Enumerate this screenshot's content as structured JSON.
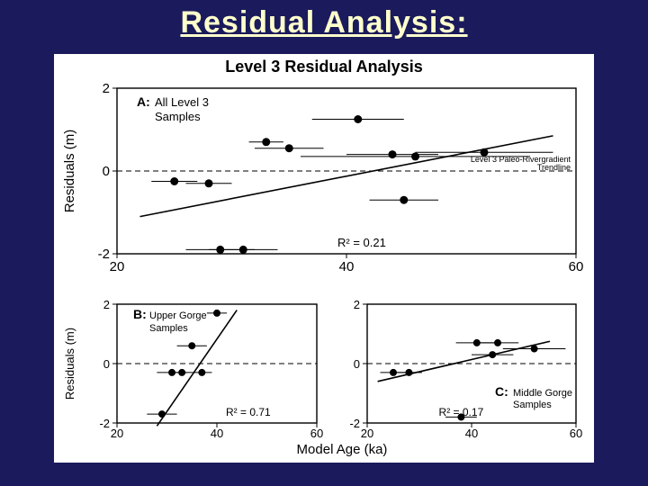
{
  "slide_title": "Residual Analysis:",
  "figure": {
    "background_color": "#ffffff",
    "title": "Level 3 Residual Analysis",
    "title_fontsize": 18,
    "xlabel": "Model Age (ka)",
    "ylabel": "Residuals (m)",
    "axis_font": 15,
    "tick_font": 15,
    "panelA": {
      "type": "scatter",
      "label_bold": "A:",
      "label_text1": "All Level 3",
      "label_text2": "Samples",
      "xlim": [
        20,
        60
      ],
      "ylim": [
        -2,
        2
      ],
      "xticks": [
        20,
        40,
        60
      ],
      "yticks": [
        -2,
        0,
        2
      ],
      "zero_line_dash": "6,4",
      "marker_color": "#000000",
      "marker_radius": 4.5,
      "errorbar_color": "#000000",
      "trend_color": "#000000",
      "trend_width": 1.6,
      "r2_text": "R² = 0.21",
      "trend_points": [
        [
          22,
          -1.1
        ],
        [
          58,
          0.85
        ]
      ],
      "annotation1": "Level 3 Paleo-Rivergradient",
      "annotation2": "Trendline",
      "points": [
        {
          "x": 25,
          "y": -0.25,
          "xerr": 2
        },
        {
          "x": 28,
          "y": -0.3,
          "xerr": 2
        },
        {
          "x": 29,
          "y": -1.9,
          "xerr": 3
        },
        {
          "x": 31,
          "y": -1.9,
          "xerr": 3
        },
        {
          "x": 33,
          "y": 0.7,
          "xerr": 1.5
        },
        {
          "x": 35,
          "y": 0.55,
          "xerr": 3
        },
        {
          "x": 41,
          "y": 1.25,
          "xerr": 4
        },
        {
          "x": 44,
          "y": 0.4,
          "xerr": 4
        },
        {
          "x": 45,
          "y": -0.7,
          "xerr": 3
        },
        {
          "x": 46,
          "y": 0.35,
          "xerr": 10
        },
        {
          "x": 52,
          "y": 0.45,
          "xerr": 6
        }
      ]
    },
    "panelB": {
      "type": "scatter",
      "label_bold": "B:",
      "label_text1": "Upper Gorge",
      "label_text2": "Samples",
      "xlim": [
        20,
        60
      ],
      "ylim": [
        -2,
        2
      ],
      "xticks": [
        20,
        40,
        60
      ],
      "yticks": [
        -2,
        0,
        2
      ],
      "zero_line_dash": "6,4",
      "marker_color": "#000000",
      "marker_radius": 4,
      "errorbar_color": "#000000",
      "trend_color": "#000000",
      "trend_width": 1.6,
      "r2_text": "R² = 0.71",
      "trend_points": [
        [
          28,
          -2.1
        ],
        [
          44,
          1.8
        ]
      ],
      "points": [
        {
          "x": 29,
          "y": -1.7,
          "xerr": 3
        },
        {
          "x": 31,
          "y": -0.3,
          "xerr": 3
        },
        {
          "x": 33,
          "y": -0.3,
          "xerr": 2
        },
        {
          "x": 35,
          "y": 0.6,
          "xerr": 3
        },
        {
          "x": 37,
          "y": -0.3,
          "xerr": 2
        },
        {
          "x": 40,
          "y": 1.7,
          "xerr": 2
        }
      ]
    },
    "panelC": {
      "type": "scatter",
      "label_bold": "C:",
      "label_text1": "Middle Gorge",
      "label_text2": "Samples",
      "xlim": [
        20,
        60
      ],
      "ylim": [
        -2,
        2
      ],
      "xticks": [
        20,
        40,
        60
      ],
      "yticks": [
        -2,
        0,
        2
      ],
      "zero_line_dash": "6,4",
      "marker_color": "#000000",
      "marker_radius": 4,
      "errorbar_color": "#000000",
      "trend_color": "#000000",
      "trend_width": 1.6,
      "r2_text": "R² = 0.17",
      "trend_points": [
        [
          22,
          -0.6
        ],
        [
          55,
          0.75
        ]
      ],
      "points": [
        {
          "x": 25,
          "y": -0.3,
          "xerr": 2.5
        },
        {
          "x": 28,
          "y": -0.3,
          "xerr": 2.5
        },
        {
          "x": 38,
          "y": -1.8,
          "xerr": 3
        },
        {
          "x": 41,
          "y": 0.7,
          "xerr": 4
        },
        {
          "x": 44,
          "y": 0.3,
          "xerr": 4
        },
        {
          "x": 45,
          "y": 0.7,
          "xerr": 4
        },
        {
          "x": 52,
          "y": 0.5,
          "xerr": 6
        }
      ]
    }
  }
}
